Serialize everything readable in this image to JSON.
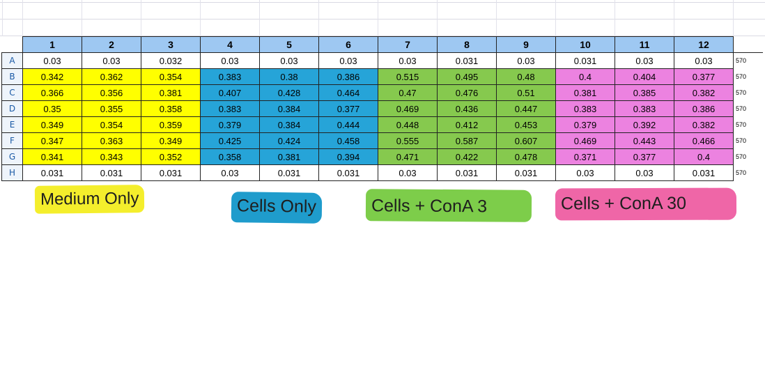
{
  "plate": {
    "columns": [
      "1",
      "2",
      "3",
      "4",
      "5",
      "6",
      "7",
      "8",
      "9",
      "10",
      "11",
      "12"
    ],
    "rows": [
      {
        "label": "A",
        "values": [
          "0.03",
          "0.03",
          "0.032",
          "0.03",
          "0.03",
          "0.03",
          "0.03",
          "0.031",
          "0.03",
          "0.031",
          "0.03",
          "0.03"
        ],
        "wavelength": "570"
      },
      {
        "label": "B",
        "values": [
          "0.342",
          "0.362",
          "0.354",
          "0.383",
          "0.38",
          "0.386",
          "0.515",
          "0.495",
          "0.48",
          "0.4",
          "0.404",
          "0.377"
        ],
        "wavelength": "570"
      },
      {
        "label": "C",
        "values": [
          "0.366",
          "0.356",
          "0.381",
          "0.407",
          "0.428",
          "0.464",
          "0.47",
          "0.476",
          "0.51",
          "0.381",
          "0.385",
          "0.382"
        ],
        "wavelength": "570"
      },
      {
        "label": "D",
        "values": [
          "0.35",
          "0.355",
          "0.358",
          "0.383",
          "0.384",
          "0.377",
          "0.469",
          "0.436",
          "0.447",
          "0.383",
          "0.383",
          "0.386"
        ],
        "wavelength": "570"
      },
      {
        "label": "E",
        "values": [
          "0.349",
          "0.354",
          "0.359",
          "0.379",
          "0.384",
          "0.444",
          "0.448",
          "0.412",
          "0.453",
          "0.379",
          "0.392",
          "0.382"
        ],
        "wavelength": "570"
      },
      {
        "label": "F",
        "values": [
          "0.347",
          "0.363",
          "0.349",
          "0.425",
          "0.424",
          "0.458",
          "0.555",
          "0.587",
          "0.607",
          "0.469",
          "0.443",
          "0.466"
        ],
        "wavelength": "570"
      },
      {
        "label": "G",
        "values": [
          "0.341",
          "0.343",
          "0.352",
          "0.358",
          "0.381",
          "0.394",
          "0.471",
          "0.422",
          "0.478",
          "0.371",
          "0.377",
          "0.4"
        ],
        "wavelength": "570"
      },
      {
        "label": "H",
        "values": [
          "0.031",
          "0.031",
          "0.031",
          "0.03",
          "0.031",
          "0.031",
          "0.03",
          "0.031",
          "0.031",
          "0.03",
          "0.03",
          "0.031"
        ],
        "wavelength": "570"
      }
    ]
  },
  "legend": {
    "medium_only": "Medium Only",
    "cells_only": "Cells Only",
    "cells_cona3": "Cells + ConA 3",
    "cells_cona30": "Cells + ConA 30"
  },
  "colors": {
    "medium_only": "#ffff00",
    "cells_only": "#26a4d8",
    "cells_cona3": "#86c94e",
    "cells_cona30": "#ec82e0",
    "header": "#9ec8f2"
  }
}
